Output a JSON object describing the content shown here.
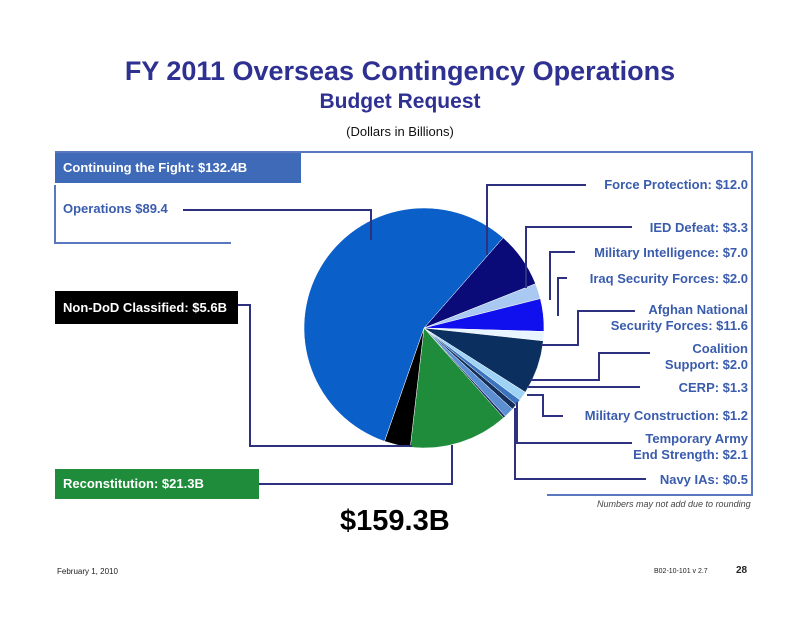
{
  "title": "FY 2011 Overseas Contingency Operations",
  "subtitle": "Budget Request",
  "unit_note": "(Dollars in Billions)",
  "total": "$159.3B",
  "rounding_note": "Numbers may not add due to rounding",
  "footer": {
    "date": "February 1, 2010",
    "code": "B02-10-101 v 2.7",
    "page": "28"
  },
  "groups": {
    "continuing": {
      "label": "Continuing the Fight: $132.4B",
      "color": "#3f6ab8"
    },
    "classified": {
      "label": "Non-DoD Classified: $5.6B",
      "color": "#000000"
    },
    "reconstitution": {
      "label": "Reconstitution: $21.3B",
      "color": "#1e8c3a"
    }
  },
  "labels": {
    "operations": "Operations $89.4",
    "force_protection": "Force Protection: $12.0",
    "ied": "IED Defeat: $3.3",
    "mil_intel": "Military Intelligence: $7.0",
    "iraq": "Iraq Security Forces: $2.0",
    "afghan_1": "Afghan National",
    "afghan_2": "Security Forces: $11.6",
    "coalition_1": "Coalition",
    "coalition_2": "Support: $2.0",
    "cerp": "CERP: $1.3",
    "milcon": "Military Construction: $1.2",
    "army_1": "Temporary Army",
    "army_2": "End Strength: $2.1",
    "navy": "Navy IAs: $0.5"
  },
  "chart_data": {
    "type": "pie",
    "title": "FY 2011 Overseas Contingency Operations",
    "subtitle": "Budget Request",
    "unit": "(Dollars in Billions)",
    "total": 159.3,
    "slices": [
      {
        "label": "Force Protection",
        "value": 12.0,
        "color": "#0a0a78"
      },
      {
        "label": "IED Defeat",
        "value": 3.3,
        "color": "#a9c8f2"
      },
      {
        "label": "Military Intelligence",
        "value": 7.0,
        "color": "#1010ee"
      },
      {
        "label": "Iraq Security Forces",
        "value": 2.0,
        "color": "#e8f4ff"
      },
      {
        "label": "Afghan National Security Forces",
        "value": 11.6,
        "color": "#0b2f5e"
      },
      {
        "label": "Coalition Support",
        "value": 2.0,
        "color": "#9fd3f5"
      },
      {
        "label": "CERP",
        "value": 1.3,
        "color": "#3a73c0"
      },
      {
        "label": "Military Construction",
        "value": 1.2,
        "color": "#14305a"
      },
      {
        "label": "Temporary Army End Strength",
        "value": 2.1,
        "color": "#5b8fd2"
      },
      {
        "label": "Navy IAs",
        "value": 0.5,
        "color": "#1a2c6a"
      },
      {
        "label": "Reconstitution",
        "value": 21.3,
        "color": "#1e8c3a"
      },
      {
        "label": "Non-DoD Classified",
        "value": 5.6,
        "color": "#000000"
      },
      {
        "label": "Operations",
        "value": 89.4,
        "color": "#0b5fc9"
      }
    ]
  }
}
